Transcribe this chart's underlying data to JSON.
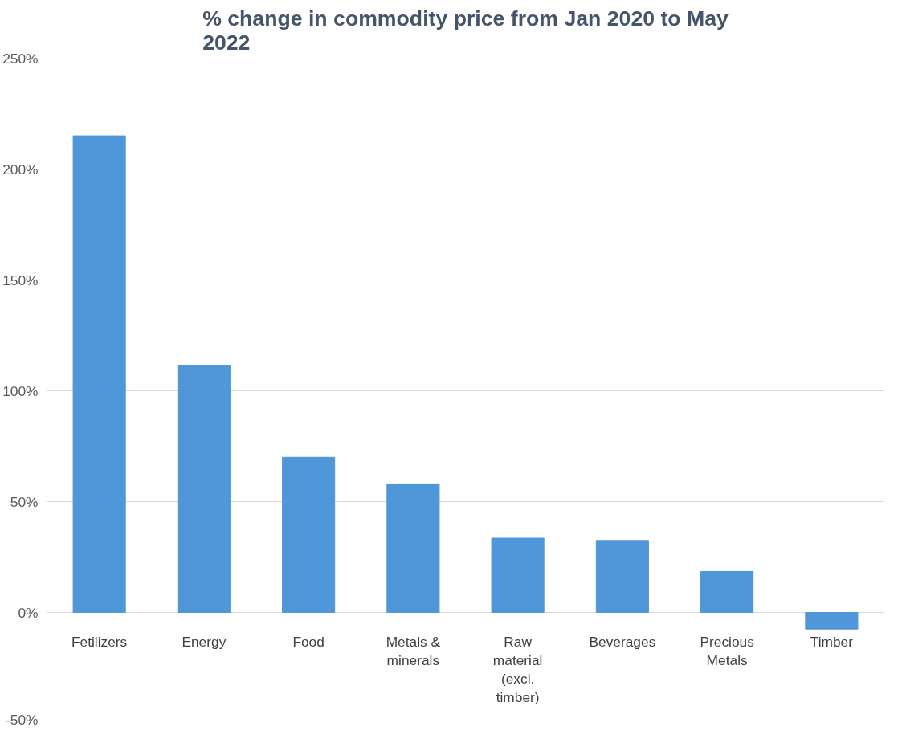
{
  "chart_data": {
    "type": "bar",
    "title": "% change in commodity price from Jan 2020 to May 2022",
    "categories": [
      "Fetilizers",
      "Energy",
      "Food",
      "Metals & minerals",
      "Raw material (excl. timber)",
      "Beverages",
      "Precious Metals",
      "Timber"
    ],
    "values": [
      215,
      111.5,
      70,
      58,
      33.5,
      32.5,
      18.5,
      -7.5
    ],
    "color": "#4f97d8",
    "ylim": [
      -50,
      250
    ],
    "yticks": [
      {
        "value": -50,
        "label": "-50%"
      },
      {
        "value": 0,
        "label": "0%"
      },
      {
        "value": 50,
        "label": "50%"
      },
      {
        "value": 100,
        "label": "100%"
      },
      {
        "value": 150,
        "label": "150%"
      },
      {
        "value": 200,
        "label": "200%"
      },
      {
        "value": 250,
        "label": "250%"
      }
    ],
    "grid": "y"
  }
}
